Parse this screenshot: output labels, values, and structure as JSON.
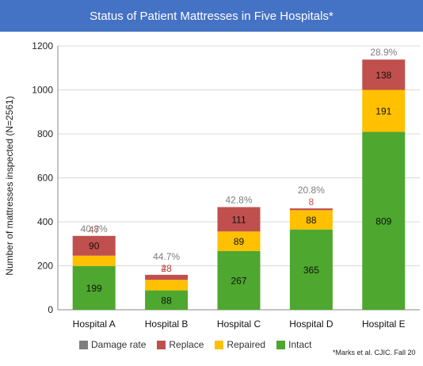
{
  "chart_data": {
    "type": "bar",
    "stacked": true,
    "title": "Status of Patient Mattresses in Five Hospitals*",
    "xlabel": "",
    "ylabel": "Number of mattresses inspected (N=2561)",
    "ylim": [
      0,
      1200
    ],
    "yticks": [
      "0",
      "200",
      "400",
      "600",
      "800",
      "1000",
      "1200"
    ],
    "grid": true,
    "legend_position": "bottom",
    "categories": [
      "Hospital A",
      "Hospital B",
      "Hospital C",
      "Hospital D",
      "Hospital E"
    ],
    "series": [
      {
        "name": "Intact",
        "color": "#4ea72e",
        "values": [
          199,
          88,
          267,
          365,
          809
        ]
      },
      {
        "name": "Repaired",
        "color": "#ffc000",
        "values": [
          47,
          48,
          89,
          88,
          191
        ]
      },
      {
        "name": "Replace",
        "color": "#c0504d",
        "values": [
          90,
          23,
          111,
          8,
          138
        ]
      }
    ],
    "damage_rate": {
      "name": "Damage rate",
      "color": "#7f7f7f",
      "values": [
        "40.8%",
        "44.7%",
        "42.8%",
        "20.8%",
        "28.9%"
      ]
    },
    "citation": "*Marks et al. CJIC. Fall 20"
  },
  "legend": {
    "damage_rate": "Damage rate",
    "replace": "Replace",
    "repaired": "Repaired",
    "intact": "Intact"
  }
}
